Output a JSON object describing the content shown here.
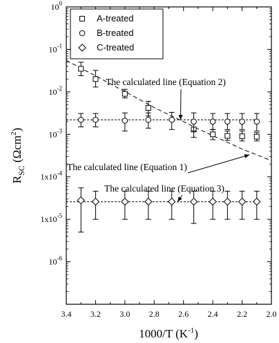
{
  "chart_data": {
    "type": "scatter",
    "title": "",
    "xlabel": {
      "base": "1000/T (K",
      "sup": "-1",
      "end": ")"
    },
    "ylabel": {
      "base": "R",
      "sub": "SC",
      "mid": " (Ωcm",
      "sup": "2",
      "end": ")"
    },
    "x_axis": {
      "reversed": true,
      "range": [
        2.0,
        3.4
      ]
    },
    "y_axis": {
      "scale": "log",
      "range": [
        1e-07,
        1
      ]
    },
    "x_ticks": [
      {
        "value": 3.4,
        "label": "3.4"
      },
      {
        "value": 3.2,
        "label": "3.2"
      },
      {
        "value": 3.0,
        "label": "3.0"
      },
      {
        "value": 2.8,
        "label": "2.8"
      },
      {
        "value": 2.6,
        "label": "2.6"
      },
      {
        "value": 2.4,
        "label": "2.4"
      },
      {
        "value": 2.2,
        "label": "2.2"
      },
      {
        "value": 2.0,
        "label": "2.0"
      }
    ],
    "y_ticks": [
      {
        "value": 1,
        "base": "10",
        "sup": "0"
      },
      {
        "value": 0.1,
        "base": "10",
        "sup": "-1"
      },
      {
        "value": 0.01,
        "base": "10",
        "sup": "-2"
      },
      {
        "value": 0.001,
        "base": "10",
        "sup": "-3"
      },
      {
        "value": 0.0001,
        "base": "1x10",
        "sup": "-4"
      },
      {
        "value": 1e-05,
        "base": "1x10",
        "sup": "-5"
      },
      {
        "value": 1e-06,
        "base": "10",
        "sup": "-6"
      }
    ],
    "legend": {
      "position": "top-left"
    },
    "series": [
      {
        "name": "A-treated",
        "marker": "square",
        "x": [
          3.3,
          3.2,
          3.0,
          2.84,
          2.53,
          2.4,
          2.3,
          2.2,
          2.1
        ],
        "y": [
          0.035,
          0.02,
          0.009,
          0.0042,
          0.0013,
          0.001,
          0.00092,
          0.0009,
          0.00088
        ],
        "err_low": [
          0.024,
          0.013,
          0.0072,
          0.0027,
          0.00085,
          0.00075,
          0.00072,
          0.0007,
          0.0007
        ],
        "err_high": [
          0.05,
          0.032,
          0.0115,
          0.006,
          0.0019,
          0.0013,
          0.0012,
          0.0012,
          0.0011
        ]
      },
      {
        "name": "B-treated",
        "marker": "circle",
        "x": [
          3.3,
          3.2,
          3.0,
          2.84,
          2.68,
          2.53,
          2.4,
          2.3,
          2.2,
          2.1
        ],
        "y": [
          0.0022,
          0.0022,
          0.0021,
          0.0022,
          0.0022,
          0.002,
          0.002,
          0.002,
          0.002,
          0.002
        ],
        "err_low": [
          0.0015,
          0.0015,
          0.0012,
          0.0014,
          0.0013,
          0.0012,
          0.0013,
          0.0013,
          0.0013,
          0.0012
        ],
        "err_high": [
          0.0031,
          0.0031,
          0.0032,
          0.0032,
          0.0033,
          0.0032,
          0.0031,
          0.0031,
          0.0031,
          0.0031
        ]
      },
      {
        "name": "C-treated",
        "marker": "diamond",
        "x": [
          3.3,
          3.2,
          3.0,
          2.84,
          2.68,
          2.53,
          2.4,
          2.3,
          2.2,
          2.1
        ],
        "y": [
          2.8e-05,
          2.6e-05,
          2.6e-05,
          2.6e-05,
          2.6e-05,
          2.6e-05,
          2.6e-05,
          2.6e-05,
          2.6e-05,
          2.6e-05
        ],
        "err_low": [
          5e-06,
          1e-05,
          1e-05,
          1e-05,
          1e-05,
          8e-06,
          1e-05,
          1e-05,
          1e-05,
          1e-05
        ],
        "err_high": [
          5.5e-05,
          4.6e-05,
          4.6e-05,
          4.6e-05,
          4.6e-05,
          4.6e-05,
          4.6e-05,
          4.6e-05,
          4.6e-05,
          4.6e-05
        ]
      }
    ],
    "lines": [
      {
        "name": "equation-2-curve",
        "style": "dashed",
        "x": [
          3.4,
          3.3,
          3.2,
          3.1,
          3.0,
          2.9,
          2.8,
          2.7,
          2.6,
          2.5,
          2.4,
          2.3,
          2.2,
          2.1,
          2.0
        ],
        "y": [
          0.055,
          0.036,
          0.024,
          0.0155,
          0.0102,
          0.0066,
          0.0043,
          0.0029,
          0.002,
          0.00135,
          0.00093,
          0.00065,
          0.00045,
          0.00033,
          0.00024
        ]
      },
      {
        "name": "equation-1-line",
        "style": "dotted",
        "x": [
          3.4,
          2.1
        ],
        "y": [
          0.0022,
          0.0022
        ]
      },
      {
        "name": "equation-3-line",
        "style": "dotted",
        "x": [
          3.4,
          2.1
        ],
        "y": [
          2.6e-05,
          2.6e-05
        ]
      }
    ],
    "annotations": [
      {
        "text": "The calculated line (Equation 2)",
        "arrow_to": {
          "x": 2.62,
          "y": 0.0022
        }
      },
      {
        "text": "The calculated line (Equation 1)",
        "arrow_to": {
          "x": 2.15,
          "y": 0.00033
        }
      },
      {
        "text": "The calculated line (Equation 3)",
        "arrow_to": {
          "x": 2.64,
          "y": 2.6e-05
        }
      }
    ]
  }
}
